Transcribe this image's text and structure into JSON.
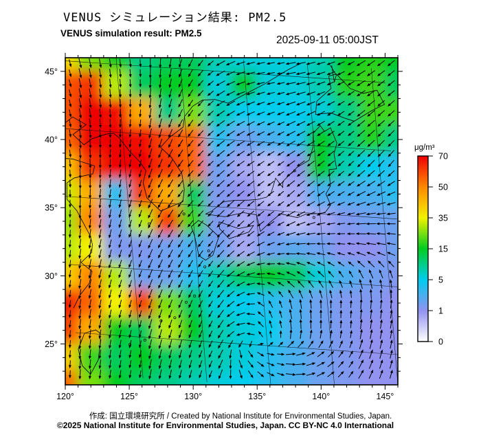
{
  "header": {
    "title_jp": "VENUS シミュレーション結果: PM2.5",
    "title_en": "VENUS simulation result: PM2.5",
    "timestamp": "2025-09-11 05:00JST"
  },
  "footer": {
    "credit": "作成:  国立環境研究所 / Created by National Institute for Environmental Studies, Japan.",
    "license": "©2025 National Institute for Environmental Studies, Japan. CC BY-NC 4.0 International"
  },
  "chart_data": {
    "type": "heatmap",
    "variable": "PM2.5",
    "title": "VENUS simulation result: PM2.5",
    "timestamp": "2025-09-11 05:00JST",
    "x_axis": {
      "range": [
        120,
        146
      ],
      "ticks_labeled": [
        120,
        125,
        130,
        135,
        140,
        145
      ],
      "minor_step": 1,
      "suffix": "°"
    },
    "y_axis": {
      "range": [
        22,
        46
      ],
      "ticks_labeled": [
        25,
        30,
        35,
        40,
        45
      ],
      "minor_step": 1,
      "suffix": "°"
    },
    "colorbar": {
      "label": "μg/m³",
      "levels": [
        0,
        1,
        5,
        15,
        35,
        50,
        70
      ],
      "colors": [
        "#ffffff",
        "#9292f0",
        "#00ccee",
        "#00cc22",
        "#f2f200",
        "#ff8800",
        "#ee0000"
      ]
    },
    "grid": {
      "lon_start": 120,
      "lon_step": 2,
      "lat_start": 46,
      "lat_step": -2,
      "values": [
        [
          38,
          25,
          15,
          10,
          12,
          12,
          8,
          6,
          6,
          6,
          8,
          15,
          18,
          15
        ],
        [
          58,
          62,
          30,
          12,
          15,
          15,
          6,
          15,
          6,
          6,
          8,
          18,
          20,
          12
        ],
        [
          58,
          70,
          68,
          45,
          10,
          25,
          8,
          5,
          5,
          5,
          6,
          10,
          20,
          20
        ],
        [
          55,
          70,
          70,
          68,
          60,
          55,
          4,
          2,
          3,
          4,
          15,
          10,
          18,
          10
        ],
        [
          42,
          62,
          70,
          70,
          62,
          55,
          2,
          0.8,
          0.6,
          1,
          15,
          8,
          5,
          4
        ],
        [
          32,
          45,
          4,
          60,
          45,
          12,
          1.5,
          1,
          0.6,
          0.8,
          3,
          3,
          3,
          4
        ],
        [
          28,
          50,
          2,
          30,
          60,
          20,
          1.5,
          0.8,
          1,
          0.6,
          0.8,
          1.5,
          2,
          2
        ],
        [
          30,
          35,
          1.5,
          1.5,
          2,
          3,
          2,
          0.8,
          2,
          2.5,
          2,
          1,
          1,
          2
        ],
        [
          40,
          50,
          30,
          2,
          2,
          4,
          8,
          12,
          15,
          12,
          6,
          3,
          2,
          1.5
        ],
        [
          65,
          55,
          35,
          60,
          25,
          12,
          6,
          5,
          4,
          3,
          2,
          1.5,
          1.5,
          1
        ],
        [
          60,
          45,
          15,
          12,
          30,
          15,
          8,
          6,
          5,
          3,
          2,
          1.5,
          1,
          1
        ],
        [
          40,
          20,
          12,
          15,
          12,
          10,
          8,
          6,
          4,
          3,
          2,
          1.5,
          1,
          1
        ],
        [
          55,
          25,
          15,
          12,
          10,
          8,
          6,
          5,
          4,
          3,
          2,
          1.5,
          1,
          1
        ]
      ]
    },
    "wind": {
      "angles_deg": [
        [
          -75,
          -78,
          -82,
          -85,
          -95,
          -120,
          -150,
          -165,
          -170,
          -170,
          -165,
          -155,
          -145,
          -140
        ],
        [
          -75,
          -80,
          -85,
          -90,
          -100,
          -125,
          -150,
          -162,
          -168,
          -168,
          -160,
          -150,
          -145,
          -140
        ],
        [
          -78,
          -82,
          -88,
          -95,
          -105,
          -128,
          -145,
          -155,
          -160,
          -158,
          -152,
          -146,
          -140,
          -138
        ],
        [
          -80,
          -85,
          -92,
          -100,
          -112,
          -130,
          -142,
          -150,
          -152,
          -150,
          -146,
          -142,
          -138,
          -134
        ],
        [
          -84,
          -88,
          -96,
          -105,
          -118,
          -132,
          -140,
          -145,
          -146,
          -144,
          -142,
          -138,
          -134,
          -130
        ],
        [
          -88,
          -92,
          -100,
          -110,
          -122,
          -132,
          -138,
          -142,
          -142,
          -140,
          -145,
          -150,
          -155,
          -158
        ],
        [
          -92,
          -96,
          -104,
          -112,
          -122,
          -130,
          -135,
          -138,
          -145,
          -155,
          -165,
          -172,
          -178,
          -180
        ],
        [
          -95,
          -100,
          -106,
          -112,
          -118,
          -125,
          -132,
          -145,
          -160,
          -178,
          175,
          172,
          170,
          168
        ],
        [
          -96,
          -102,
          -108,
          -112,
          -116,
          -120,
          -130,
          -155,
          170,
          150,
          135,
          120,
          110,
          105
        ],
        [
          -96,
          -100,
          -104,
          -108,
          -112,
          -115,
          -125,
          -160,
          120,
          100,
          92,
          88,
          85,
          82
        ],
        [
          -95,
          -98,
          -102,
          -105,
          -108,
          -110,
          -120,
          180,
          105,
          92,
          88,
          85,
          82,
          80
        ],
        [
          -94,
          -96,
          -100,
          -102,
          -104,
          -108,
          -120,
          -60,
          -20,
          0,
          30,
          55,
          70,
          78
        ],
        [
          -92,
          -95,
          -98,
          -100,
          -102,
          -105,
          -110,
          -70,
          -30,
          -5,
          25,
          50,
          65,
          75
        ]
      ]
    },
    "coastlines": [
      [
        [
          120,
          40
        ],
        [
          121.2,
          40.9
        ],
        [
          122.2,
          40.4
        ],
        [
          121.1,
          39.6
        ],
        [
          121.9,
          38.9
        ],
        [
          122.6,
          39.4
        ],
        [
          123.7,
          39.8
        ],
        [
          124.3,
          39.9
        ],
        [
          124.7,
          39.6
        ],
        [
          125.4,
          38.7
        ],
        [
          126.2,
          37.9
        ],
        [
          126.6,
          37.3
        ],
        [
          126.3,
          36.4
        ],
        [
          126.5,
          35.3
        ],
        [
          127.5,
          34.4
        ],
        [
          128.6,
          34.9
        ],
        [
          129.3,
          35.2
        ],
        [
          129.5,
          36.1
        ],
        [
          129.4,
          37.3
        ],
        [
          128.7,
          38.4
        ],
        [
          127.9,
          39.1
        ],
        [
          128.7,
          39.9
        ],
        [
          129.8,
          40.7
        ],
        [
          130,
          41.5
        ],
        [
          130.7,
          42.3
        ],
        [
          131.5,
          42.8
        ],
        [
          132.5,
          42.9
        ],
        [
          133.5,
          42.7
        ],
        [
          135,
          43.5
        ],
        [
          136.5,
          44.3
        ],
        [
          138.5,
          45.5
        ],
        [
          139.5,
          46
        ]
      ],
      [
        [
          120,
          37.8
        ],
        [
          120.9,
          37.8
        ],
        [
          122.6,
          37.4
        ],
        [
          122.4,
          36.8
        ],
        [
          120.9,
          36.4
        ],
        [
          120.3,
          36
        ],
        [
          120.2,
          34.8
        ],
        [
          120.9,
          34
        ],
        [
          121.8,
          32.2
        ],
        [
          121.9,
          31.6
        ],
        [
          121.8,
          31
        ],
        [
          120.9,
          30.2
        ],
        [
          121.7,
          29.6
        ],
        [
          121.4,
          28.7
        ],
        [
          120.6,
          27.8
        ],
        [
          120,
          26.8
        ]
      ],
      [
        [
          121.9,
          25.1
        ],
        [
          121.6,
          25.3
        ],
        [
          120.7,
          25
        ],
        [
          120.1,
          23.8
        ],
        [
          120.3,
          22.6
        ],
        [
          120.9,
          22
        ],
        [
          121.6,
          23.1
        ],
        [
          121.9,
          24.5
        ],
        [
          121.9,
          25.1
        ]
      ],
      [
        [
          130,
          32.7
        ],
        [
          130.2,
          31.3
        ],
        [
          130.7,
          31
        ],
        [
          131.3,
          31.4
        ],
        [
          131.9,
          32.8
        ],
        [
          131,
          33.6
        ],
        [
          130.4,
          33.9
        ],
        [
          129.8,
          33.4
        ],
        [
          130,
          32.7
        ]
      ],
      [
        [
          132,
          33.9
        ],
        [
          133.5,
          33.5
        ],
        [
          134.7,
          33.8
        ],
        [
          134.3,
          33.3
        ],
        [
          132.7,
          32.7
        ],
        [
          132,
          33.4
        ],
        [
          132,
          33.9
        ]
      ],
      [
        [
          131,
          34.4
        ],
        [
          132.5,
          34.3
        ],
        [
          134,
          34.7
        ],
        [
          135,
          34.6
        ],
        [
          135.2,
          33.4
        ],
        [
          136,
          34.1
        ],
        [
          136.9,
          34.8
        ],
        [
          138.2,
          34.6
        ],
        [
          138.9,
          34.9
        ],
        [
          139.8,
          35
        ],
        [
          140.4,
          35.1
        ],
        [
          140.9,
          35.7
        ],
        [
          140.6,
          36.5
        ],
        [
          141,
          37.1
        ],
        [
          141,
          38.3
        ],
        [
          141.6,
          38.4
        ],
        [
          141.5,
          39.5
        ],
        [
          141.8,
          40.3
        ],
        [
          141.4,
          41.4
        ],
        [
          140.9,
          41.1
        ],
        [
          140.6,
          41.5
        ],
        [
          140,
          40.9
        ],
        [
          139.9,
          39.9
        ],
        [
          139.5,
          38.9
        ],
        [
          138.5,
          38.3
        ],
        [
          137.3,
          37.2
        ],
        [
          137.25,
          36.75
        ],
        [
          136.75,
          37.4
        ],
        [
          136.3,
          36.3
        ],
        [
          135.9,
          35.95
        ],
        [
          135.2,
          35.75
        ],
        [
          134.5,
          35.65
        ],
        [
          133.3,
          35.55
        ],
        [
          132.5,
          35.4
        ],
        [
          131.5,
          34.65
        ],
        [
          131,
          34.4
        ]
      ],
      [
        [
          140.3,
          42.3
        ],
        [
          141.5,
          42.5
        ],
        [
          142.5,
          42.2
        ],
        [
          143.3,
          42
        ],
        [
          144.8,
          42.9
        ],
        [
          145.8,
          43.4
        ],
        [
          145.3,
          44.4
        ],
        [
          144.2,
          44.1
        ],
        [
          143.2,
          44.4
        ],
        [
          142.2,
          45.4
        ],
        [
          141.6,
          45.2
        ],
        [
          141.7,
          44.3
        ],
        [
          140.5,
          43.3
        ],
        [
          140.3,
          42.3
        ]
      ],
      [
        [
          141.8,
          46
        ],
        [
          142.2,
          45.3
        ],
        [
          142,
          44.8
        ],
        [
          141.9,
          46
        ]
      ]
    ],
    "islands": [
      [
        124.2,
        24.4
      ],
      [
        125.4,
        24.8
      ],
      [
        126.8,
        26.3
      ],
      [
        127.9,
        26.6
      ],
      [
        128.9,
        27.8
      ],
      [
        129.6,
        28.3
      ],
      [
        130.6,
        30.5
      ],
      [
        131,
        31.7
      ],
      [
        126.5,
        33.4
      ],
      [
        129.3,
        34.3
      ],
      [
        139.5,
        34.7
      ],
      [
        138.3,
        38.05
      ]
    ]
  }
}
